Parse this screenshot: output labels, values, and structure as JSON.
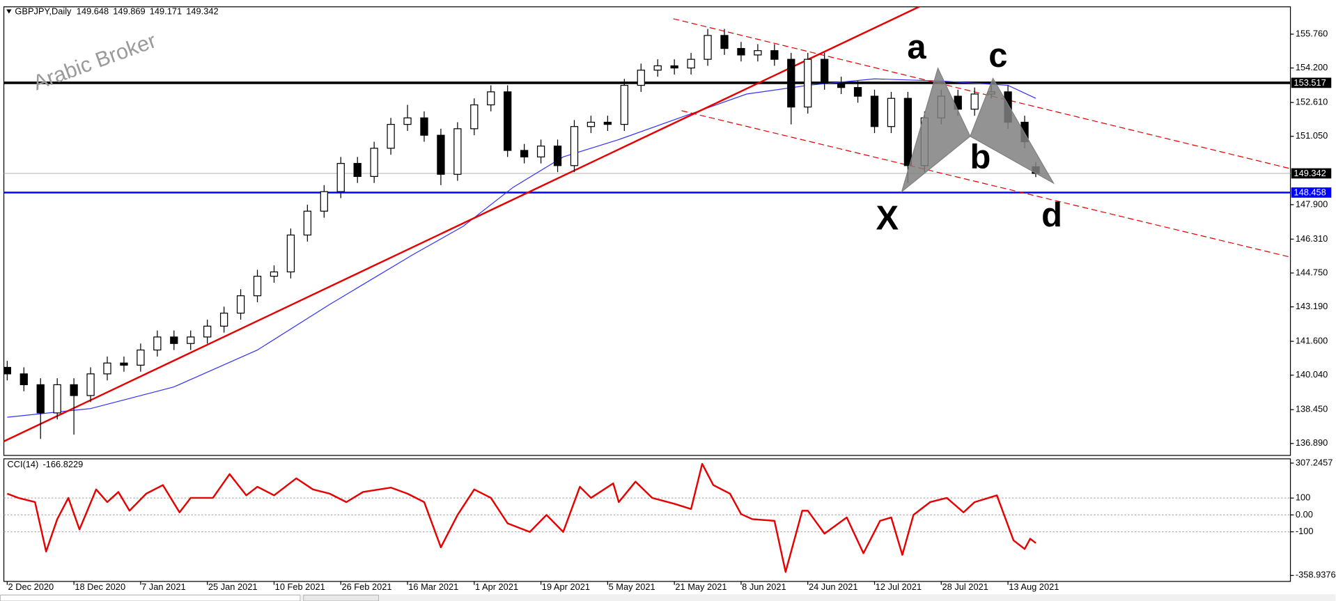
{
  "watermark": "Arabic Broker",
  "chart_data": [
    {
      "type": "candlestick",
      "title": "GBPJPY,Daily",
      "x": [
        0,
        3,
        6,
        9,
        12,
        15,
        18,
        21,
        24,
        27,
        30,
        33,
        36,
        39,
        42,
        45,
        48,
        51,
        54,
        57,
        60,
        63,
        66,
        69,
        72,
        75,
        78,
        81,
        84,
        87,
        90,
        93,
        96,
        99,
        102,
        105,
        108,
        111,
        114,
        117,
        120,
        123,
        126,
        129,
        132,
        135,
        138,
        141,
        144,
        147,
        150,
        153,
        156,
        159,
        162,
        165,
        168,
        171,
        174,
        177,
        180,
        183,
        185
      ],
      "open": [
        140.4,
        140.1,
        139.6,
        138.3,
        139.6,
        139.1,
        140.1,
        140.6,
        140.5,
        141.2,
        141.8,
        141.5,
        141.8,
        142.3,
        142.9,
        143.7,
        144.6,
        144.8,
        146.5,
        147.6,
        148.5,
        149.8,
        149.2,
        150.5,
        151.6,
        151.9,
        151.1,
        149.3,
        151.4,
        152.5,
        153.1,
        150.4,
        150.1,
        150.6,
        149.7,
        151.5,
        151.7,
        151.6,
        153.4,
        154.1,
        154.3,
        154.2,
        154.6,
        155.7,
        155.1,
        154.8,
        155.0,
        154.6,
        152.4,
        154.6,
        153.5,
        153.3,
        152.9,
        151.5,
        152.8,
        149.7,
        151.9,
        152.9,
        152.3,
        153.0,
        153.1,
        151.7,
        149.648
      ],
      "high": [
        140.7,
        140.4,
        139.9,
        139.9,
        139.9,
        140.4,
        140.9,
        140.9,
        141.5,
        142.1,
        142.1,
        142.1,
        142.6,
        143.2,
        144.0,
        144.9,
        145.1,
        146.8,
        147.9,
        148.8,
        150.1,
        150.1,
        150.8,
        151.9,
        152.5,
        152.2,
        151.4,
        151.7,
        152.8,
        153.4,
        153.4,
        150.7,
        150.9,
        150.9,
        151.8,
        152.0,
        152.0,
        153.7,
        154.4,
        154.6,
        154.6,
        154.9,
        156.0,
        156.0,
        155.4,
        155.3,
        155.3,
        154.9,
        154.9,
        154.9,
        153.8,
        153.6,
        153.2,
        153.1,
        153.1,
        152.2,
        153.2,
        153.2,
        153.3,
        153.5,
        153.4,
        152.0,
        149.869
      ],
      "low": [
        139.8,
        139.3,
        137.1,
        138.0,
        137.3,
        138.8,
        139.8,
        140.2,
        140.2,
        140.9,
        141.2,
        141.2,
        141.5,
        142.0,
        142.6,
        143.4,
        144.3,
        144.5,
        146.2,
        147.3,
        148.2,
        148.9,
        148.9,
        150.2,
        151.3,
        150.8,
        148.8,
        149.0,
        151.1,
        152.2,
        150.1,
        149.8,
        149.8,
        149.4,
        149.4,
        151.2,
        151.3,
        151.3,
        153.1,
        153.8,
        153.9,
        153.9,
        154.3,
        154.8,
        154.5,
        154.5,
        154.3,
        151.6,
        152.1,
        153.2,
        153.0,
        152.6,
        151.2,
        151.2,
        148.9,
        149.4,
        151.6,
        152.0,
        152.0,
        152.8,
        151.4,
        150.5,
        149.171
      ],
      "close": [
        140.1,
        139.6,
        138.3,
        139.6,
        139.1,
        140.1,
        140.6,
        140.5,
        141.2,
        141.8,
        141.5,
        141.8,
        142.3,
        142.9,
        143.7,
        144.6,
        144.8,
        146.5,
        147.6,
        148.5,
        149.8,
        149.2,
        150.5,
        151.6,
        151.9,
        151.1,
        149.3,
        151.4,
        152.5,
        153.1,
        150.4,
        150.1,
        150.6,
        149.7,
        151.5,
        151.7,
        151.6,
        153.4,
        154.1,
        154.3,
        154.2,
        154.6,
        155.7,
        155.1,
        154.8,
        155.0,
        154.6,
        152.4,
        154.6,
        153.5,
        153.3,
        152.9,
        151.5,
        152.8,
        149.7,
        151.9,
        152.9,
        152.3,
        153.0,
        153.1,
        151.7,
        150.8,
        149.342
      ],
      "up_color": "#ffffff",
      "down_color": "#000000",
      "xlim": [
        -0.6,
        230.8
      ],
      "xticks": [
        {
          "value": 0,
          "label": "2 Dec 2020"
        },
        {
          "value": 12,
          "label": "18 Dec 2020"
        },
        {
          "value": 24,
          "label": "7 Jan 2021"
        },
        {
          "value": 36,
          "label": "25 Jan 2021"
        },
        {
          "value": 48,
          "label": "10 Feb 2021"
        },
        {
          "value": 60,
          "label": "26 Feb 2021"
        },
        {
          "value": 72,
          "label": "16 Mar 2021"
        },
        {
          "value": 84,
          "label": "1 Apr 2021"
        },
        {
          "value": 96,
          "label": "19 Apr 2021"
        },
        {
          "value": 108,
          "label": "5 May 2021"
        },
        {
          "value": 120,
          "label": "21 May 2021"
        },
        {
          "value": 132,
          "label": "8 Jun 2021"
        },
        {
          "value": 144,
          "label": "24 Jun 2021"
        },
        {
          "value": 156,
          "label": "12 Jul 2021"
        },
        {
          "value": 168,
          "label": "28 Jul 2021"
        },
        {
          "value": 180,
          "label": "13 Aug 2021"
        }
      ],
      "ylim": [
        136.34,
        157.02
      ],
      "yticks": [
        {
          "value": 155.76,
          "label": "155.760"
        },
        {
          "value": 154.2,
          "label": "154.200"
        },
        {
          "value": 152.61,
          "label": "152.610"
        },
        {
          "value": 151.05,
          "label": "151.050"
        },
        {
          "value": 147.9,
          "label": "147.900"
        },
        {
          "value": 146.31,
          "label": "146.310"
        },
        {
          "value": 144.75,
          "label": "144.750"
        },
        {
          "value": 143.19,
          "label": "143.190"
        },
        {
          "value": 141.6,
          "label": "141.600"
        },
        {
          "value": 140.04,
          "label": "140.040"
        },
        {
          "value": 138.45,
          "label": "138.450"
        },
        {
          "value": 136.89,
          "label": "136.890"
        }
      ],
      "lines": [
        {
          "color": "#3232ff",
          "line_width": 1,
          "dashed": false,
          "x": [
            0,
            15,
            30,
            45,
            58,
            73,
            82,
            91,
            100,
            110,
            122,
            133,
            144,
            156,
            168,
            180,
            185
          ],
          "values": [
            138.1,
            138.5,
            139.5,
            141.2,
            143.3,
            145.6,
            146.9,
            148.7,
            150.1,
            150.9,
            152.0,
            153.0,
            153.4,
            153.7,
            153.6,
            153.4,
            152.8
          ]
        },
        {
          "color": "#e60000",
          "line_width": 2,
          "dashed": false,
          "x": [
            -0.6,
            164.9
          ],
          "values": [
            136.99,
            157.13
          ]
        },
        {
          "color": "#e60000",
          "line_width": 1,
          "dashed": true,
          "x": [
            119.8,
            230.8
          ],
          "values": [
            156.47,
            149.56
          ]
        },
        {
          "color": "#e60000",
          "line_width": 1,
          "dashed": true,
          "x": [
            121.3,
            230.8
          ],
          "values": [
            152.23,
            145.48
          ]
        }
      ],
      "levels": [
        {
          "value": 153.517,
          "color": "#000000",
          "line_width": 3,
          "label_background": "#000000"
        },
        {
          "value": 149.342,
          "color": "#c0c0c0",
          "line_width": 1,
          "label_background": "#000000"
        },
        {
          "value": 148.458,
          "color": "#0000ff",
          "line_width": 2,
          "label_background": "#0000ff"
        }
      ],
      "pattern": {
        "color": "#808080",
        "points": [
          {
            "label": "X",
            "x": 160.9,
            "value": 148.5
          },
          {
            "label": "a",
            "x": 167.4,
            "value": 154.19
          },
          {
            "label": "b",
            "x": 173.2,
            "value": 151.05
          },
          {
            "label": "c",
            "x": 177.3,
            "value": 153.72
          },
          {
            "label": "d",
            "x": 188.2,
            "value": 148.89
          }
        ]
      }
    },
    {
      "type": "line",
      "title": "CCI(14)",
      "color": "#e60000",
      "x": [
        0,
        2,
        5,
        7,
        9,
        11,
        13,
        16,
        18,
        20,
        22,
        25,
        28,
        31,
        33,
        37,
        40,
        43,
        45,
        48,
        52,
        55,
        58,
        61,
        64,
        69,
        72,
        75,
        78,
        81,
        84,
        87,
        90,
        94,
        97,
        100,
        103,
        105,
        109,
        110,
        113,
        116,
        120,
        123,
        125,
        127,
        130,
        132,
        134,
        138,
        140,
        143,
        144,
        147,
        151,
        154,
        157,
        159,
        161,
        163,
        166,
        169,
        172,
        174,
        178,
        181,
        183,
        184,
        185
      ],
      "values": [
        126,
        101,
        76,
        -217,
        -25,
        101,
        -86,
        151,
        76,
        136,
        25,
        126,
        177,
        15,
        101,
        101,
        242,
        116,
        167,
        116,
        217,
        151,
        126,
        76,
        136,
        162,
        126,
        76,
        -192,
        0,
        151,
        101,
        -50,
        -101,
        0,
        -101,
        167,
        101,
        187,
        76,
        197,
        101,
        66,
        35,
        303,
        177,
        126,
        5,
        -25,
        -35,
        -338,
        25,
        25,
        -111,
        -15,
        -227,
        -35,
        -15,
        -237,
        0,
        76,
        101,
        15,
        76,
        116,
        -151,
        -202,
        -141,
        -166.8229
      ],
      "xlim": [
        -0.6,
        230.8
      ],
      "ylim": [
        -358.9376,
        307.2457
      ],
      "yticks": [
        {
          "value": 307.2457,
          "label": "307.2457"
        },
        100,
        {
          "value": 0,
          "label": "0.00"
        },
        -100,
        {
          "value": -358.9376,
          "label": "-358.9376"
        }
      ]
    }
  ]
}
